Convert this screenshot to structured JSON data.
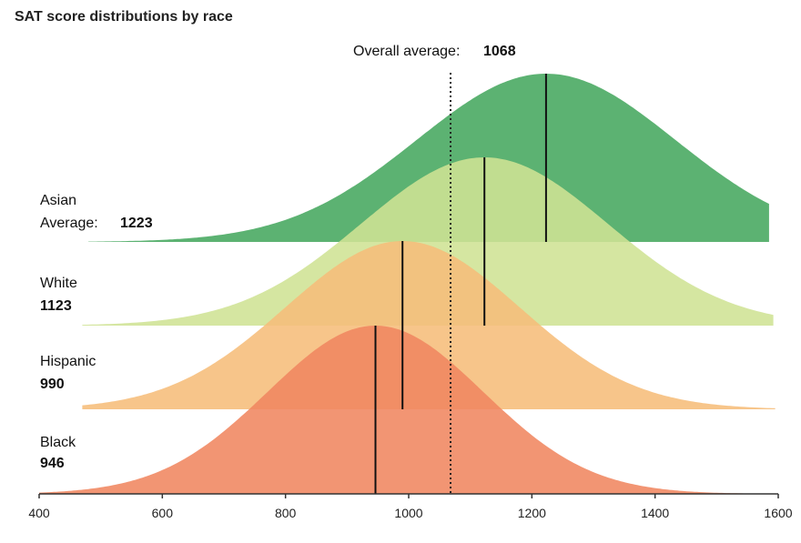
{
  "chart_data": {
    "type": "area",
    "title": "SAT score distributions by race",
    "xlim": [
      400,
      1600
    ],
    "x_ticks": [
      "400",
      "600",
      "800",
      "1000",
      "1200",
      "1400",
      "1600"
    ],
    "x_tick_values": [
      400,
      600,
      800,
      1000,
      1200,
      1400,
      1600
    ],
    "overall": {
      "label": "Overall average:",
      "value": 1068
    },
    "series": [
      {
        "name": "Asian",
        "label_prefix": "Average:",
        "average_label": "1223",
        "mean": 1223,
        "sd": 210,
        "color": "#5cb272",
        "lane": 0
      },
      {
        "name": "White",
        "label_prefix": "",
        "average_label": "1123",
        "mean": 1123,
        "sd": 200,
        "color": "#cfe394",
        "lane": 1
      },
      {
        "name": "Hispanic",
        "label_prefix": "",
        "average_label": "990",
        "mean": 990,
        "sd": 190,
        "color": "#f6bd7a",
        "lane": 2
      },
      {
        "name": "Black",
        "label_prefix": "",
        "average_label": "946",
        "mean": 946,
        "sd": 175,
        "color": "#f08660",
        "lane": 3
      }
    ],
    "grid": false,
    "legend": "inline-left"
  }
}
